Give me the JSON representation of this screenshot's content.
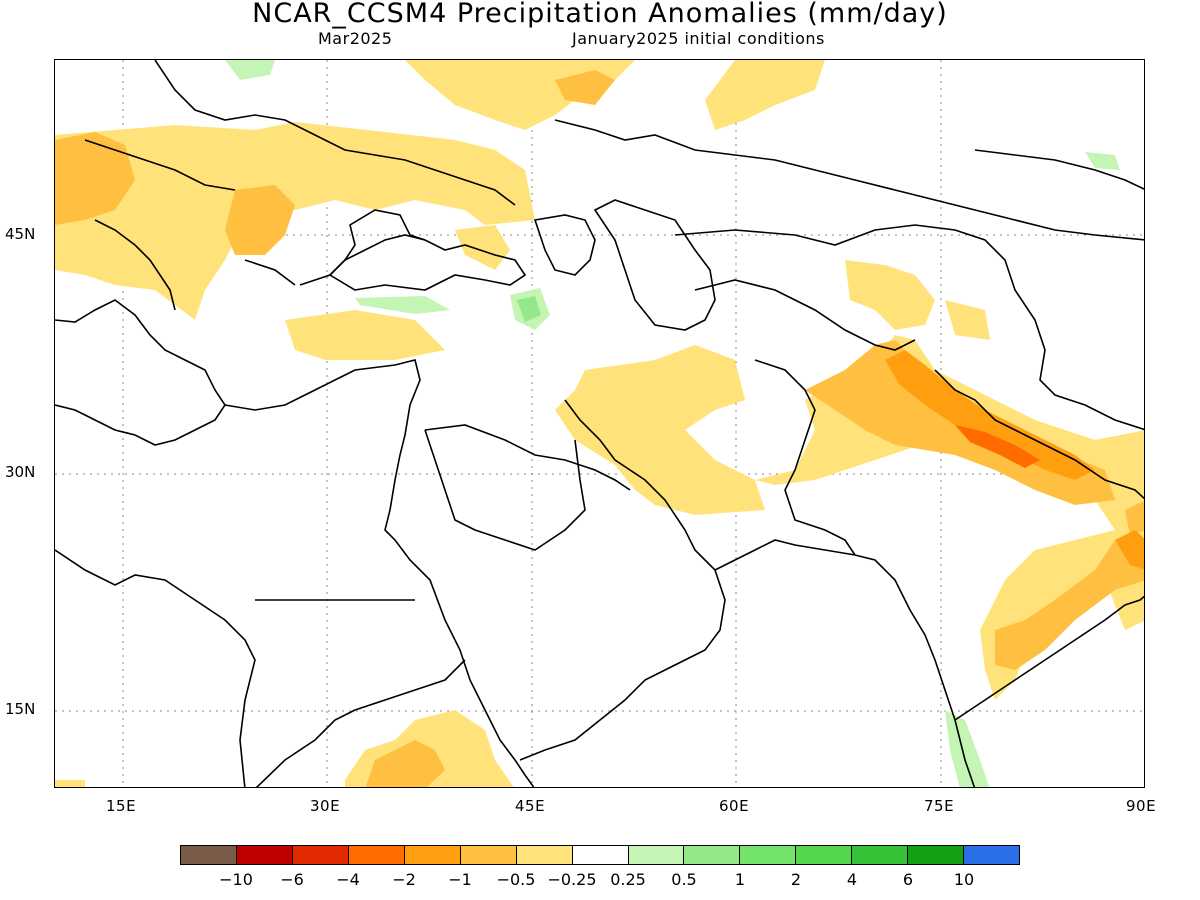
{
  "header": {
    "title": "NCAR_CCSM4 Precipitation Anomalies (mm/day)",
    "month": "Mar2025",
    "init": "January2025 initial conditions"
  },
  "axes": {
    "x_ticks": [
      "15E",
      "30E",
      "45E",
      "60E",
      "75E",
      "90E"
    ],
    "y_ticks": [
      "45N",
      "30N",
      "15N"
    ]
  },
  "colorbar": {
    "colors": [
      "#7a5a48",
      "#c00000",
      "#e12a00",
      "#ff6b00",
      "#ff9f10",
      "#ffbf40",
      "#ffe37a",
      "#ffffff",
      "#c4f5b4",
      "#94e88a",
      "#74e36a",
      "#52d84c",
      "#36c236",
      "#12a112",
      "#2a6ee8"
    ],
    "labels": [
      "−10",
      "−6",
      "−4",
      "−2",
      "−1",
      "−0.5",
      "−0.25",
      "0.25",
      "0.5",
      "1",
      "2",
      "4",
      "6",
      "10"
    ]
  }
}
